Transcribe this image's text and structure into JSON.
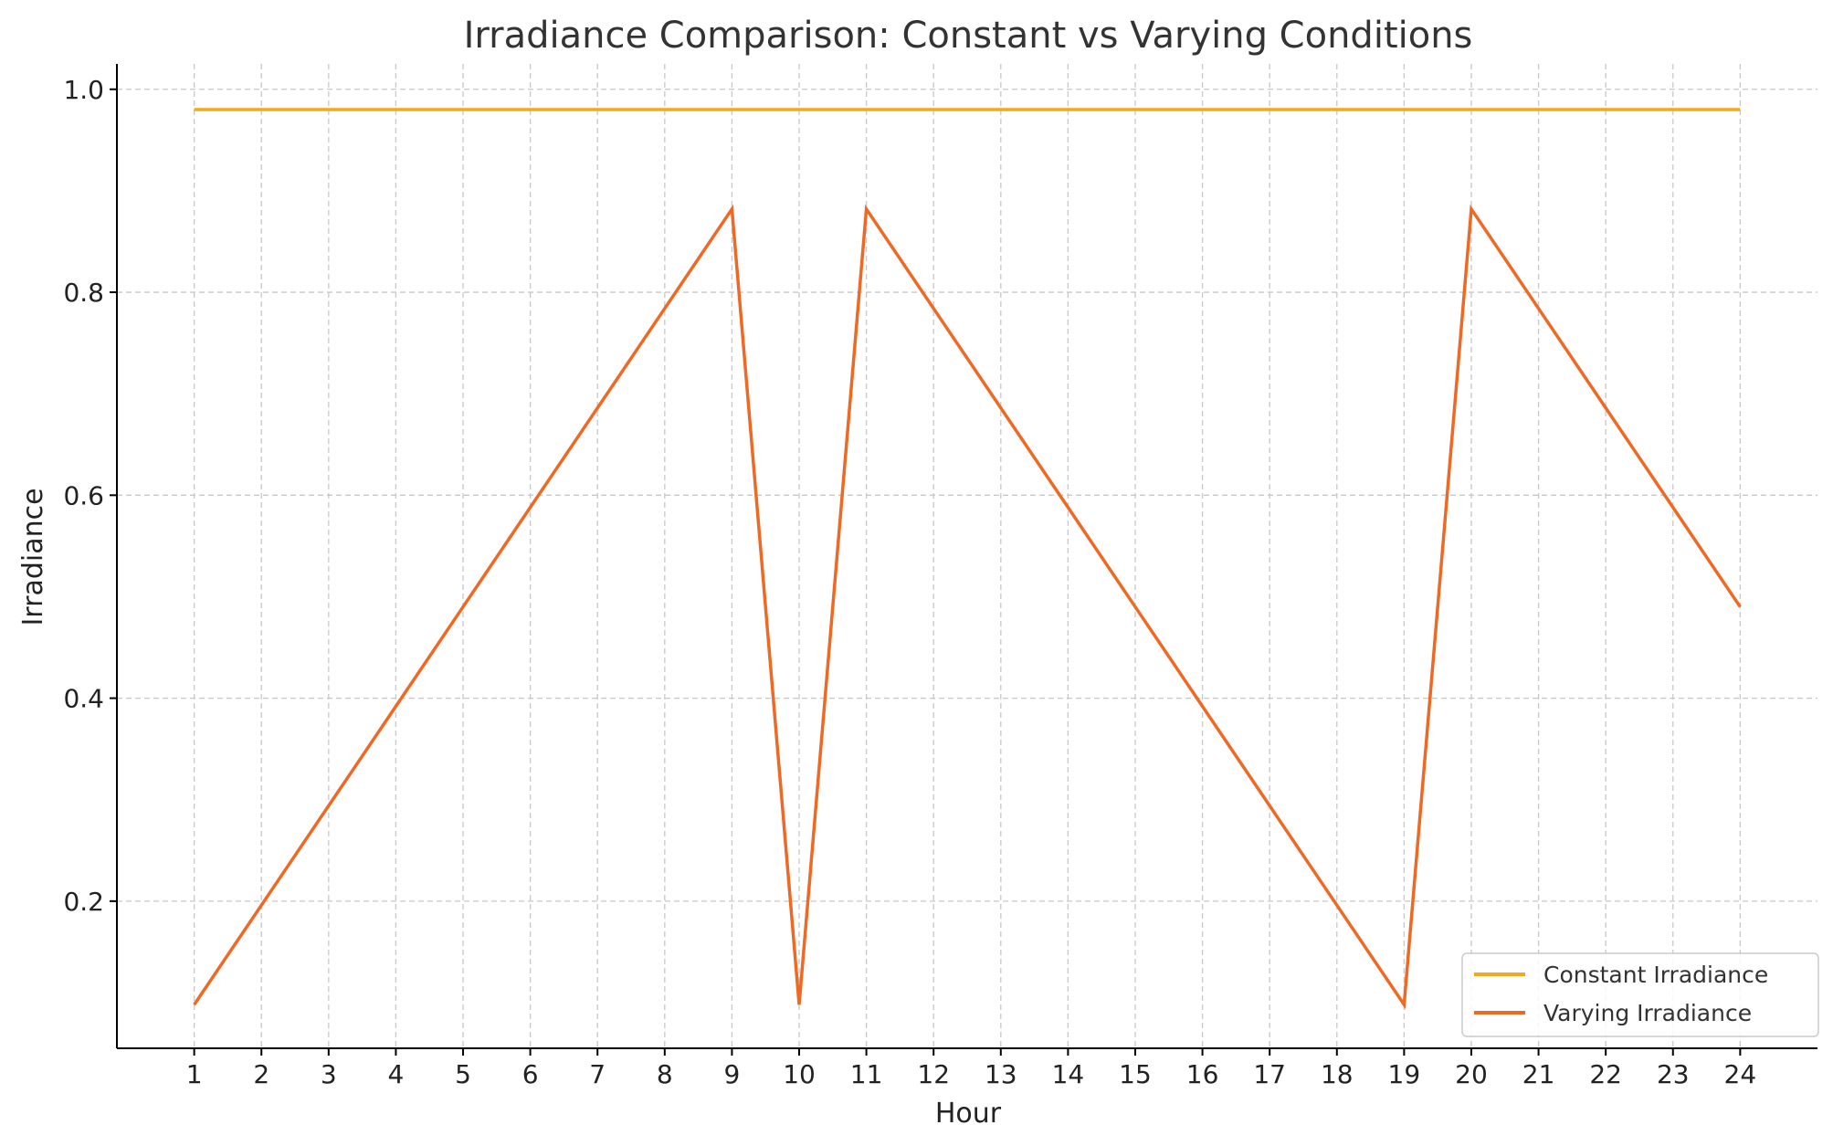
{
  "chart_data": {
    "type": "line",
    "title": "Irradiance Comparison: Constant vs Varying Conditions",
    "xlabel": "Hour",
    "ylabel": "Irradiance",
    "x": [
      1,
      2,
      3,
      4,
      5,
      6,
      7,
      8,
      9,
      10,
      11,
      12,
      13,
      14,
      15,
      16,
      17,
      18,
      19,
      20,
      21,
      22,
      23,
      24
    ],
    "xlim": [
      -0.15,
      25.15
    ],
    "ylim": [
      0.055,
      1.025
    ],
    "yticks": [
      0.2,
      0.4,
      0.6,
      0.8,
      1.0
    ],
    "grid": true,
    "legend_position": "bottom-right",
    "series": [
      {
        "name": "Constant Irradiance",
        "color": "#f5a81c",
        "values": [
          0.98,
          0.98,
          0.98,
          0.98,
          0.98,
          0.98,
          0.98,
          0.98,
          0.98,
          0.98,
          0.98,
          0.98,
          0.98,
          0.98,
          0.98,
          0.98,
          0.98,
          0.98,
          0.98,
          0.98,
          0.98,
          0.98,
          0.98,
          0.98
        ]
      },
      {
        "name": "Varying Irradiance",
        "color": "#ee6a24",
        "values": [
          0.098,
          0.196,
          0.294,
          0.392,
          0.49,
          0.588,
          0.686,
          0.784,
          0.882,
          0.098,
          0.882,
          0.784,
          0.686,
          0.588,
          0.49,
          0.392,
          0.294,
          0.196,
          0.098,
          0.882,
          0.784,
          0.686,
          0.588,
          0.49
        ]
      }
    ]
  }
}
